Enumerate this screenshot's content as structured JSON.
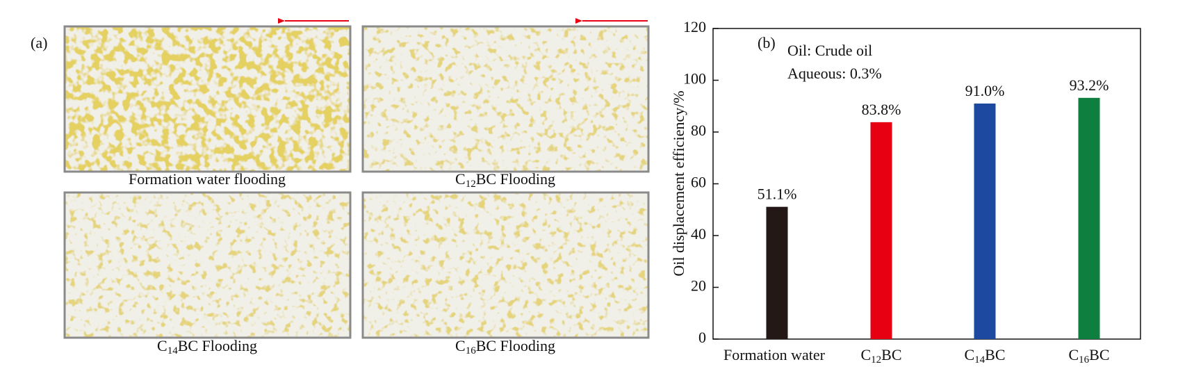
{
  "panel_a": {
    "label": "(a)",
    "images": [
      {
        "caption": "Formation water flooding"
      },
      {
        "caption": "C12BC Flooding"
      },
      {
        "caption": "C14BC Flooding"
      },
      {
        "caption": "C16BC Flooding"
      }
    ]
  },
  "chart_data": {
    "type": "bar",
    "panel_label": "(b)",
    "annotations": [
      "Oil: Crude oil",
      "Aqueous: 0.3%"
    ],
    "ylabel": "Oil displacement efficiency/%",
    "categories": [
      "Formation water",
      "C12BC",
      "C14BC",
      "C16BC"
    ],
    "values": [
      51.1,
      83.8,
      91.0,
      93.2
    ],
    "value_labels": [
      "51.1%",
      "83.8%",
      "91.0%",
      "93.2%"
    ],
    "colors": [
      "#231815",
      "#e60012",
      "#1d4aa0",
      "#0f7f3f"
    ],
    "ylim": [
      0,
      120
    ],
    "yticks": [
      0,
      20,
      40,
      60,
      80,
      100,
      120
    ],
    "grid": false
  }
}
